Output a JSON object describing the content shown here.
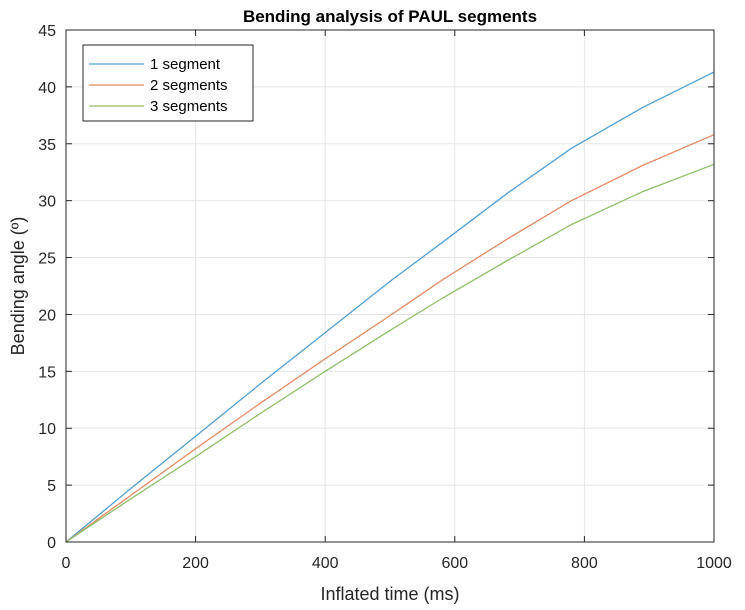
{
  "chart_data": {
    "type": "line",
    "title": "Bending analysis of PAUL segments",
    "xlabel": "Inflated time (ms)",
    "ylabel": "Bending angle (º)",
    "xlim": [
      0,
      1000
    ],
    "ylim": [
      0,
      45
    ],
    "xticks": [
      0,
      200,
      400,
      600,
      800,
      1000
    ],
    "yticks": [
      0,
      5,
      10,
      15,
      20,
      25,
      30,
      35,
      40,
      45
    ],
    "grid": true,
    "legend_position": "upper-left",
    "x": [
      0,
      100,
      200,
      300,
      400,
      500,
      580,
      680,
      780,
      890,
      1000
    ],
    "series": [
      {
        "name": "1 segment",
        "color": "#4f9fd4",
        "values": [
          0,
          4.7,
          9.3,
          13.9,
          18.4,
          22.9,
          26.3,
          30.6,
          34.6,
          38.2,
          41.3
        ]
      },
      {
        "name": "2 segments",
        "color": "#e58a65",
        "values": [
          0,
          4.1,
          8.2,
          12.2,
          16.1,
          19.9,
          23.0,
          26.6,
          30.0,
          33.1,
          35.8
        ]
      },
      {
        "name": "3 segments",
        "color": "#8fc06a",
        "values": [
          0,
          3.8,
          7.5,
          11.3,
          15.0,
          18.6,
          21.4,
          24.7,
          27.9,
          30.8,
          33.2
        ]
      }
    ]
  }
}
